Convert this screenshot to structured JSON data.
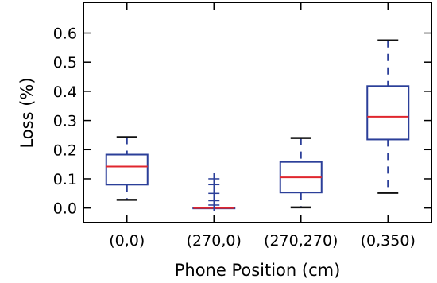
{
  "chart_data": {
    "type": "box",
    "xlabel": "Phone Position (cm)",
    "ylabel": "Loss (%)",
    "ylim": [
      -0.05,
      0.705
    ],
    "yticks": [
      0.0,
      0.1,
      0.2,
      0.3,
      0.4,
      0.5,
      0.6
    ],
    "ytick_labels": [
      "0.0",
      "0.1",
      "0.2",
      "0.3",
      "0.4",
      "0.5",
      "0.6"
    ],
    "categories": [
      "(0,0)",
      "(270,0)",
      "(270,270)",
      "(0,350)"
    ],
    "boxes": [
      {
        "category": "(0,0)",
        "whisker_low": 0.028,
        "q1": 0.08,
        "median": 0.142,
        "q3": 0.183,
        "whisker_high": 0.243,
        "outliers": []
      },
      {
        "category": "(270,0)",
        "whisker_low": 0.0,
        "q1": 0.0,
        "median": 0.0,
        "q3": 0.0,
        "whisker_high": 0.0,
        "outliers": [
          0.01,
          0.025,
          0.05,
          0.08,
          0.1
        ]
      },
      {
        "category": "(270,270)",
        "whisker_low": 0.002,
        "q1": 0.053,
        "median": 0.105,
        "q3": 0.158,
        "whisker_high": 0.24,
        "outliers": []
      },
      {
        "category": "(0,350)",
        "whisker_low": 0.052,
        "q1": 0.235,
        "median": 0.313,
        "q3": 0.418,
        "whisker_high": 0.575,
        "outliers": []
      }
    ],
    "colors": {
      "box": "#2b3f99",
      "median": "#e0262e",
      "cap": "#111111",
      "outlier": "#2b3f99",
      "axis": "#000000"
    },
    "grid": false,
    "legend": "none"
  }
}
